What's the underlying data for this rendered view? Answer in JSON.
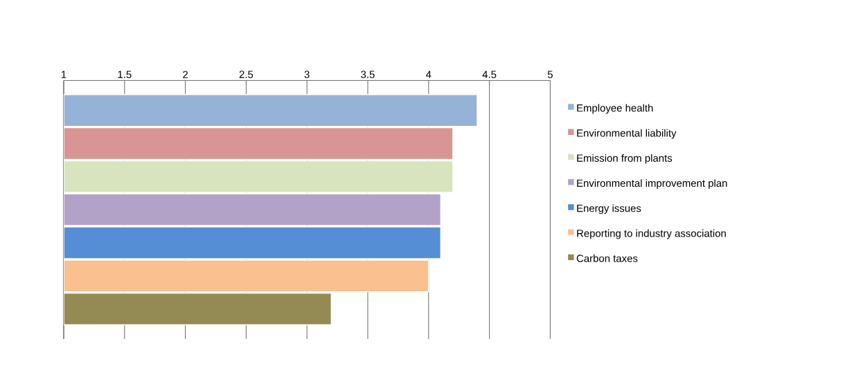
{
  "chart_data": {
    "type": "bar",
    "orientation": "horizontal",
    "categories": [
      null
    ],
    "series": [
      {
        "name": "Employee health",
        "color": "#95b3d7",
        "values": [
          4.4
        ]
      },
      {
        "name": "Environmental liability",
        "color": "#d99594",
        "values": [
          4.2
        ]
      },
      {
        "name": "Emission from plants",
        "color": "#d7e4bd",
        "values": [
          4.2
        ]
      },
      {
        "name": "Environmental improvement plan",
        "color": "#b3a2c7",
        "values": [
          4.1
        ]
      },
      {
        "name": "Energy issues",
        "color": "#558ed5",
        "values": [
          4.1
        ]
      },
      {
        "name": "Reporting to industry association",
        "color": "#fac090",
        "values": [
          4.0
        ]
      },
      {
        "name": "Carbon taxes",
        "color": "#948a54",
        "values": [
          3.2
        ]
      }
    ],
    "xlim": [
      1,
      5
    ],
    "xticks": [
      1,
      1.5,
      2,
      2.5,
      3,
      3.5,
      4,
      4.5,
      5
    ],
    "grid": "x",
    "legend": "right"
  }
}
